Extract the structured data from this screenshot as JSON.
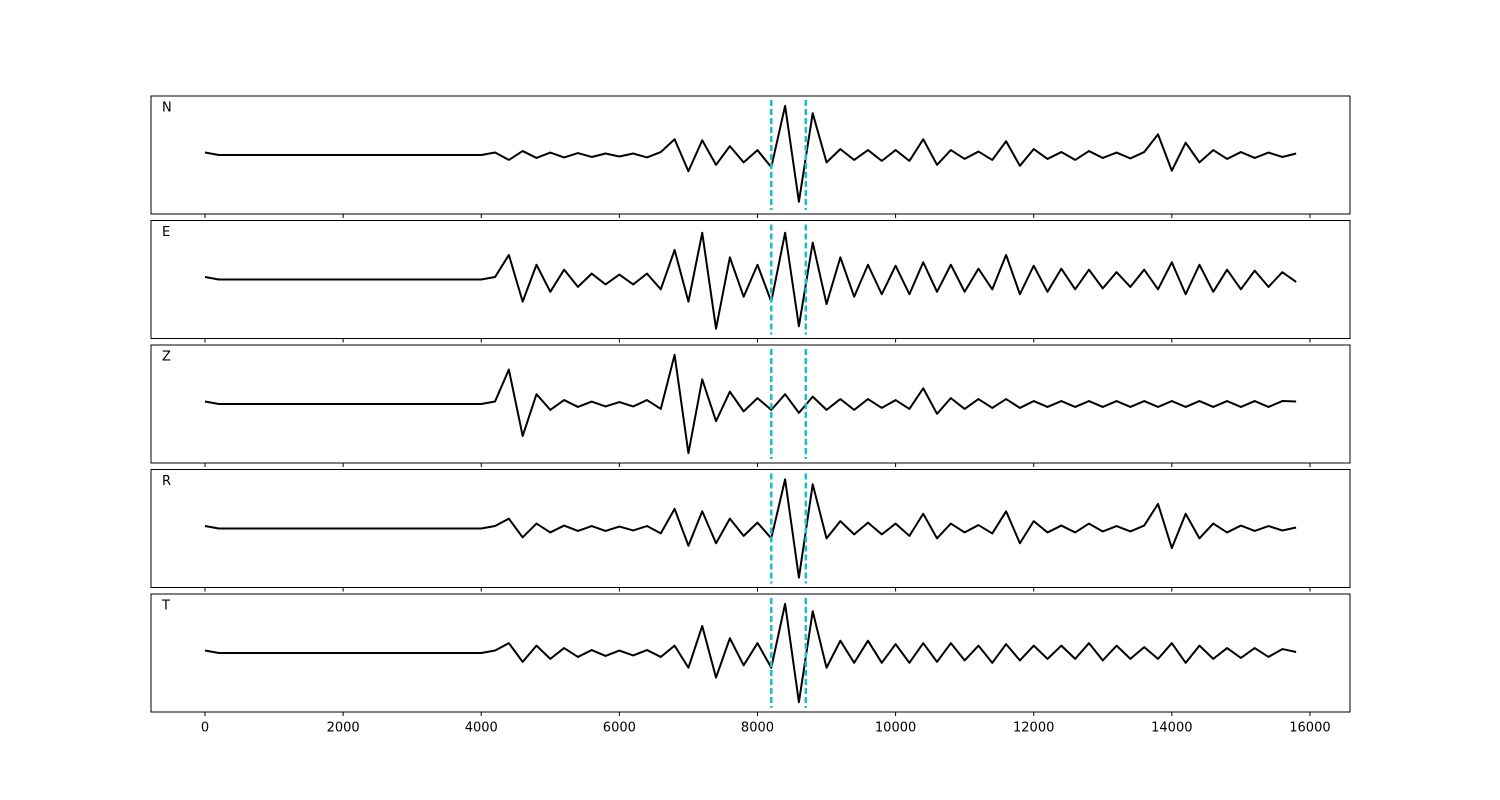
{
  "chart_data": {
    "type": "line",
    "x": [
      0,
      200,
      400,
      600,
      800,
      1000,
      1200,
      1400,
      1600,
      1800,
      2000,
      2200,
      2400,
      2600,
      2800,
      3000,
      3200,
      3400,
      3600,
      3800,
      4000,
      4200,
      4400,
      4600,
      4800,
      5000,
      5200,
      5400,
      5600,
      5800,
      6000,
      6200,
      6400,
      6600,
      6800,
      7000,
      7200,
      7400,
      7600,
      7800,
      8000,
      8200,
      8400,
      8600,
      8800,
      9000,
      9200,
      9400,
      9600,
      9800,
      10000,
      10200,
      10400,
      10600,
      10800,
      11000,
      11200,
      11400,
      11600,
      11800,
      12000,
      12200,
      12400,
      12600,
      12800,
      13000,
      13200,
      13400,
      13600,
      13800,
      14000,
      14200,
      14400,
      14600,
      14800,
      15000,
      15200,
      15400,
      15600,
      15800
    ],
    "series": [
      {
        "name": "N",
        "color": "#000000",
        "values": [
          0.05,
          0,
          0,
          0,
          0,
          0,
          0,
          0,
          0,
          0,
          0,
          0,
          0,
          0,
          0,
          0,
          0,
          0,
          0,
          0,
          0,
          0.05,
          -0.1,
          0.08,
          -0.06,
          0.05,
          -0.05,
          0.04,
          -0.04,
          0.03,
          -0.03,
          0.03,
          -0.05,
          0.06,
          0.32,
          -0.33,
          0.3,
          -0.2,
          0.18,
          -0.15,
          0.1,
          -0.25,
          1.0,
          -0.95,
          0.85,
          -0.15,
          0.12,
          -0.1,
          0.1,
          -0.12,
          0.1,
          -0.12,
          0.32,
          -0.2,
          0.1,
          -0.08,
          0.07,
          -0.1,
          0.28,
          -0.22,
          0.12,
          -0.08,
          0.06,
          -0.1,
          0.08,
          -0.06,
          0.05,
          -0.07,
          0.06,
          0.42,
          -0.32,
          0.25,
          -0.15,
          0.1,
          -0.08,
          0.06,
          -0.06,
          0.05,
          -0.04,
          0.03
        ]
      },
      {
        "name": "E",
        "color": "#000000",
        "values": [
          0.05,
          0,
          0,
          0,
          0,
          0,
          0,
          0,
          0,
          0,
          0,
          0,
          0,
          0,
          0,
          0,
          0,
          0,
          0,
          0,
          0,
          0.05,
          0.5,
          -0.45,
          0.3,
          -0.25,
          0.2,
          -0.15,
          0.12,
          -0.1,
          0.1,
          -0.1,
          0.12,
          -0.2,
          0.6,
          -0.45,
          0.95,
          -1.0,
          0.45,
          -0.35,
          0.3,
          -0.45,
          0.95,
          -0.95,
          0.75,
          -0.5,
          0.45,
          -0.35,
          0.3,
          -0.3,
          0.28,
          -0.3,
          0.35,
          -0.25,
          0.3,
          -0.25,
          0.22,
          -0.2,
          0.5,
          -0.3,
          0.28,
          -0.25,
          0.22,
          -0.2,
          0.2,
          -0.18,
          0.15,
          -0.15,
          0.2,
          -0.2,
          0.35,
          -0.3,
          0.3,
          -0.25,
          0.2,
          -0.2,
          0.18,
          -0.15,
          0.15,
          -0.05
        ]
      },
      {
        "name": "Z",
        "color": "#000000",
        "values": [
          0.05,
          0,
          0,
          0,
          0,
          0,
          0,
          0,
          0,
          0,
          0,
          0,
          0,
          0,
          0,
          0,
          0,
          0,
          0,
          0,
          0,
          0.05,
          0.7,
          -0.65,
          0.2,
          -0.12,
          0.08,
          -0.06,
          0.05,
          -0.05,
          0.04,
          -0.05,
          0.08,
          -0.1,
          1.0,
          -1.0,
          0.5,
          -0.35,
          0.25,
          -0.15,
          0.12,
          -0.12,
          0.2,
          -0.18,
          0.15,
          -0.12,
          0.1,
          -0.12,
          0.1,
          -0.08,
          0.08,
          -0.1,
          0.32,
          -0.2,
          0.12,
          -0.1,
          0.1,
          -0.08,
          0.1,
          -0.08,
          0.06,
          -0.06,
          0.06,
          -0.06,
          0.06,
          -0.06,
          0.06,
          -0.06,
          0.06,
          -0.06,
          0.06,
          -0.06,
          0.06,
          -0.06,
          0.06,
          -0.06,
          0.06,
          -0.06,
          0.06,
          0.05
        ]
      },
      {
        "name": "R",
        "color": "#000000",
        "values": [
          0.05,
          0,
          0,
          0,
          0,
          0,
          0,
          0,
          0,
          0,
          0,
          0,
          0,
          0,
          0,
          0,
          0,
          0,
          0,
          0,
          0,
          0.05,
          0.2,
          -0.18,
          0.1,
          -0.08,
          0.06,
          -0.05,
          0.05,
          -0.05,
          0.04,
          -0.04,
          0.05,
          -0.1,
          0.4,
          -0.35,
          0.35,
          -0.3,
          0.2,
          -0.15,
          0.12,
          -0.2,
          1.0,
          -1.0,
          0.9,
          -0.2,
          0.15,
          -0.12,
          0.12,
          -0.12,
          0.1,
          -0.15,
          0.3,
          -0.2,
          0.1,
          -0.08,
          0.07,
          -0.1,
          0.35,
          -0.3,
          0.15,
          -0.08,
          0.06,
          -0.08,
          0.1,
          -0.06,
          0.05,
          -0.06,
          0.06,
          0.5,
          -0.4,
          0.3,
          -0.2,
          0.1,
          -0.08,
          0.06,
          -0.05,
          0.05,
          -0.04,
          0.02
        ]
      },
      {
        "name": "T",
        "color": "#000000",
        "values": [
          0.05,
          0,
          0,
          0,
          0,
          0,
          0,
          0,
          0,
          0,
          0,
          0,
          0,
          0,
          0,
          0,
          0,
          0,
          0,
          0,
          0,
          0.05,
          0.2,
          -0.18,
          0.15,
          -0.12,
          0.1,
          -0.08,
          0.06,
          -0.06,
          0.05,
          -0.05,
          0.06,
          -0.08,
          0.15,
          -0.3,
          0.55,
          -0.5,
          0.3,
          -0.25,
          0.2,
          -0.3,
          1.0,
          -1.0,
          0.85,
          -0.3,
          0.25,
          -0.2,
          0.25,
          -0.2,
          0.18,
          -0.2,
          0.2,
          -0.18,
          0.2,
          -0.15,
          0.15,
          -0.2,
          0.18,
          -0.15,
          0.15,
          -0.12,
          0.15,
          -0.12,
          0.2,
          -0.15,
          0.15,
          -0.12,
          0.12,
          -0.12,
          0.2,
          -0.2,
          0.15,
          -0.12,
          0.1,
          -0.1,
          0.1,
          -0.08,
          0.08,
          0.02
        ]
      }
    ],
    "xlim": [
      -782,
      16580
    ],
    "xticks": [
      0,
      2000,
      4000,
      6000,
      8000,
      10000,
      12000,
      14000,
      16000
    ],
    "ylim": [
      -1.2,
      1.2
    ],
    "vlines": {
      "values": [
        8200,
        8700
      ],
      "color": "#17becf"
    }
  }
}
